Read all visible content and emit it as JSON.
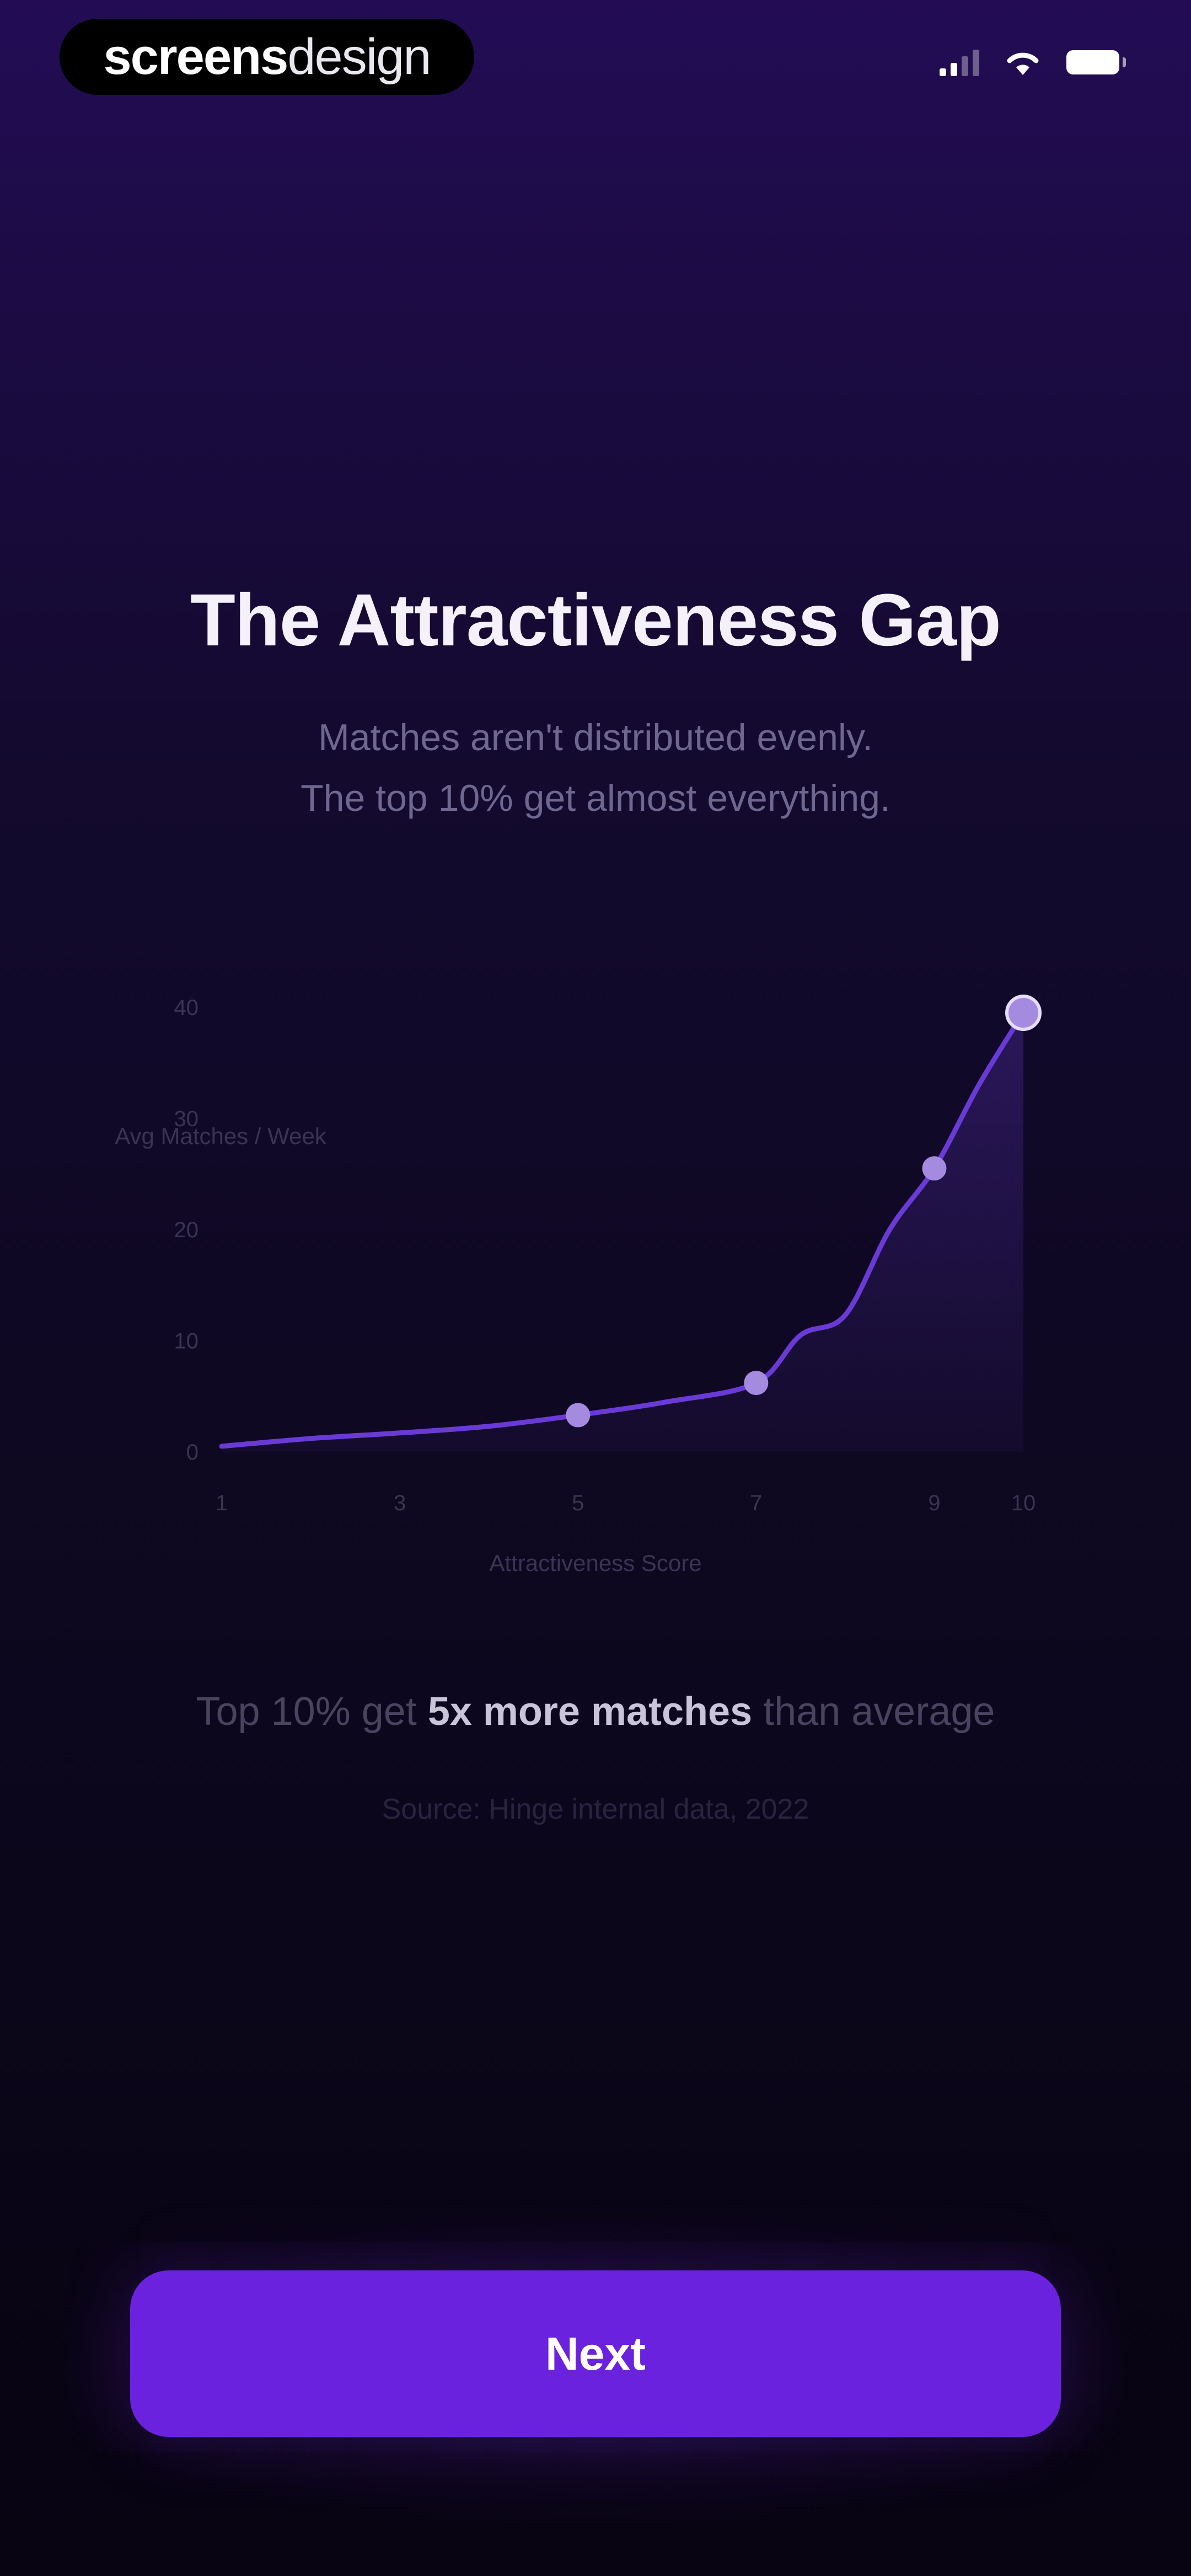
{
  "status_bar": {
    "brand_bold": "screens",
    "brand_light": "design",
    "icons": [
      "signal-icon",
      "wifi-icon",
      "battery-icon"
    ]
  },
  "header": {
    "title": "The Attractiveness Gap",
    "subtitle_line1": "Matches aren't distributed evenly.",
    "subtitle_line2": "The top 10% get almost everything."
  },
  "chart_data": {
    "type": "line",
    "title": "",
    "xlabel": "Attractiveness Score",
    "ylabel": "Avg Matches / Week",
    "x_ticks": [
      "1",
      "3",
      "5",
      "7",
      "9",
      "10"
    ],
    "y_ticks": [
      "0",
      "10",
      "20",
      "30",
      "40"
    ],
    "xlim": [
      1,
      10
    ],
    "ylim": [
      0,
      40
    ],
    "series": [
      {
        "x": [
          1,
          2,
          3,
          4,
          5,
          6,
          7,
          7.5,
          8,
          8.5,
          9,
          9.5,
          10
        ],
        "values": [
          0.5,
          1.2,
          1.7,
          2.3,
          3.3,
          4.5,
          6.2,
          10.5,
          12.3,
          20,
          25.5,
          33,
          39.5
        ]
      }
    ],
    "highlighted_points": [
      {
        "x": 5,
        "y": 3.3
      },
      {
        "x": 7,
        "y": 6.2
      },
      {
        "x": 9,
        "y": 25.5
      },
      {
        "x": 10,
        "y": 39.5
      }
    ],
    "line_color": "#6a3ad6",
    "point_color": "#a58be0",
    "area_fill": true,
    "grid": false
  },
  "stat": {
    "prefix": "Top 10% get ",
    "highlight": "5x more matches",
    "suffix": " than average"
  },
  "source": "Source: Hinge internal data, 2022",
  "cta": {
    "next_label": "Next",
    "accent": "#6a22de"
  }
}
